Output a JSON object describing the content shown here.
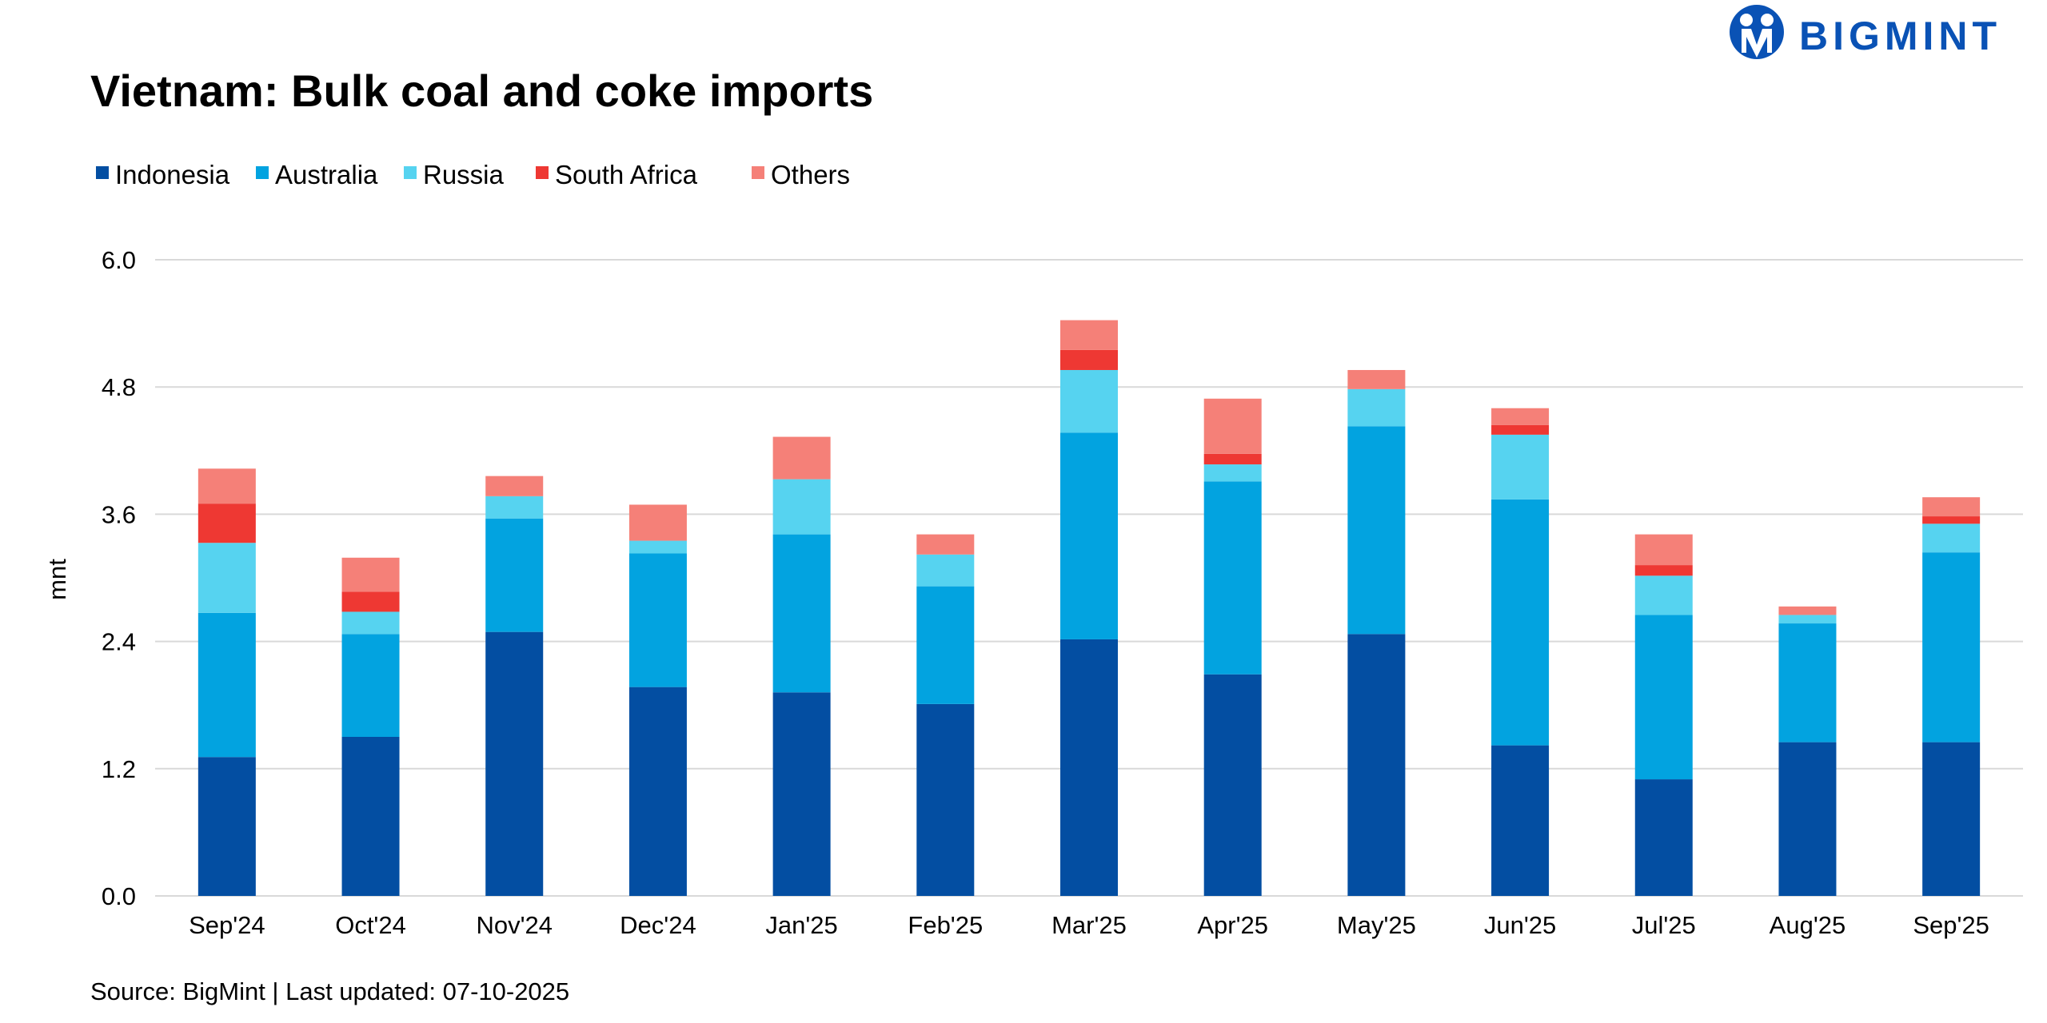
{
  "chart_data": {
    "type": "bar",
    "stacked": true,
    "title": "Vietnam: Bulk coal and coke imports",
    "ylabel": "mnt",
    "xlabel": "",
    "ylim": [
      0,
      6.0
    ],
    "yticks": [
      "0.0",
      "1.2",
      "2.4",
      "3.6",
      "4.8",
      "6.0"
    ],
    "grid": true,
    "legend_position": "top-left",
    "categories": [
      "Sep'24",
      "Oct'24",
      "Nov'24",
      "Dec'24",
      "Jan'25",
      "Feb'25",
      "Mar'25",
      "Apr'25",
      "May'25",
      "Jun'25",
      "Jul'25",
      "Aug'25",
      "Sep'25"
    ],
    "series": [
      {
        "name": "Indonesia",
        "color": "#034ea2",
        "values": [
          1.31,
          1.5,
          2.49,
          1.97,
          1.92,
          1.81,
          2.42,
          2.09,
          2.47,
          1.42,
          1.1,
          1.45,
          1.45
        ]
      },
      {
        "name": "Australia",
        "color": "#02a3e0",
        "values": [
          1.36,
          0.97,
          1.07,
          1.26,
          1.49,
          1.11,
          1.95,
          1.82,
          1.96,
          2.32,
          1.55,
          1.12,
          1.79
        ]
      },
      {
        "name": "Russia",
        "color": "#56d3f0",
        "values": [
          0.66,
          0.21,
          0.21,
          0.12,
          0.52,
          0.3,
          0.59,
          0.16,
          0.35,
          0.61,
          0.37,
          0.08,
          0.27
        ]
      },
      {
        "name": "South Africa",
        "color": "#ee3833",
        "values": [
          0.37,
          0.19,
          0,
          0,
          0,
          0,
          0.19,
          0.1,
          0,
          0.09,
          0.1,
          0,
          0.07
        ]
      },
      {
        "name": "Others",
        "color": "#f58078",
        "values": [
          0.33,
          0.32,
          0.19,
          0.34,
          0.4,
          0.19,
          0.28,
          0.52,
          0.18,
          0.16,
          0.29,
          0.08,
          0.18
        ]
      }
    ],
    "source": "Source: BigMint | Last updated: 07-10-2025"
  },
  "logo": {
    "text": "BIGMINT",
    "color": "#0a52b5"
  }
}
